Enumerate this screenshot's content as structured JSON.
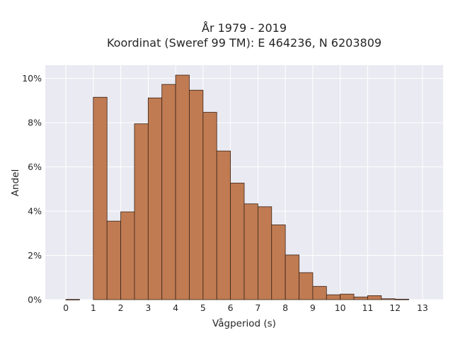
{
  "chart_data": {
    "type": "bar",
    "title_line1": "År 1979 - 2019",
    "title_line2": "Koordinat (Sweref 99 TM): E 464236, N 6203809",
    "xlabel": "Vågperiod (s)",
    "ylabel": "Andel",
    "xlim": [
      -0.75,
      13.75
    ],
    "ylim": [
      0,
      10.6
    ],
    "x_ticks": [
      "0",
      "1",
      "2",
      "3",
      "4",
      "5",
      "6",
      "7",
      "8",
      "9",
      "10",
      "11",
      "12",
      "13"
    ],
    "y_ticks": [
      "0%",
      "2%",
      "4%",
      "6%",
      "8%",
      "10%"
    ],
    "y_tick_values": [
      0,
      2,
      4,
      6,
      8,
      10
    ],
    "grid": true,
    "bin_width": 0.5,
    "bins": [
      {
        "x0": 0.0,
        "value": 0.01
      },
      {
        "x0": 1.0,
        "value": 9.15
      },
      {
        "x0": 1.5,
        "value": 3.55
      },
      {
        "x0": 2.0,
        "value": 3.97
      },
      {
        "x0": 2.5,
        "value": 7.95
      },
      {
        "x0": 3.0,
        "value": 9.12
      },
      {
        "x0": 3.5,
        "value": 9.73
      },
      {
        "x0": 4.0,
        "value": 10.15
      },
      {
        "x0": 4.5,
        "value": 9.47
      },
      {
        "x0": 5.0,
        "value": 8.47
      },
      {
        "x0": 5.5,
        "value": 6.72
      },
      {
        "x0": 6.0,
        "value": 5.27
      },
      {
        "x0": 6.5,
        "value": 4.33
      },
      {
        "x0": 7.0,
        "value": 4.2
      },
      {
        "x0": 7.5,
        "value": 3.38
      },
      {
        "x0": 8.0,
        "value": 2.02
      },
      {
        "x0": 8.5,
        "value": 1.22
      },
      {
        "x0": 9.0,
        "value": 0.6
      },
      {
        "x0": 9.5,
        "value": 0.22
      },
      {
        "x0": 10.0,
        "value": 0.25
      },
      {
        "x0": 10.5,
        "value": 0.12
      },
      {
        "x0": 11.0,
        "value": 0.18
      },
      {
        "x0": 11.5,
        "value": 0.04
      },
      {
        "x0": 12.0,
        "value": 0.02
      }
    ],
    "colors": {
      "bar_fill": "#c07b52",
      "bar_edge": "#3a2418",
      "plot_bg": "#eaeaf2",
      "grid": "#ffffff"
    }
  }
}
